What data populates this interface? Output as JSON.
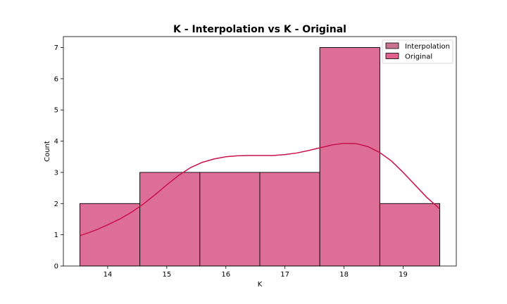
{
  "chart_data": {
    "type": "bar",
    "title": "K - Interpolation vs K - Original",
    "xlabel": "K",
    "ylabel": "Count",
    "xlim": [
      13.25,
      19.9
    ],
    "ylim": [
      0,
      7.35
    ],
    "xticks": [
      14,
      15,
      16,
      17,
      18,
      19
    ],
    "yticks": [
      0,
      1,
      2,
      3,
      4,
      5,
      6,
      7
    ],
    "bin_edges": [
      13.53,
      14.545,
      15.56,
      16.575,
      17.59,
      18.605,
      19.62
    ],
    "series": [
      {
        "name": "Interpolation",
        "counts": [
          2,
          3,
          3,
          3,
          7,
          2
        ],
        "color": "#c9728f"
      },
      {
        "name": "Original",
        "counts": [
          2,
          3,
          3,
          3,
          7,
          2
        ],
        "color": "#e0608e"
      }
    ],
    "kde": {
      "color": "#c8124a",
      "x": [
        13.53,
        13.8,
        14.0,
        14.2,
        14.4,
        14.6,
        14.8,
        15.0,
        15.2,
        15.4,
        15.6,
        15.8,
        16.0,
        16.2,
        16.4,
        16.6,
        16.8,
        17.0,
        17.2,
        17.4,
        17.6,
        17.8,
        18.0,
        18.2,
        18.4,
        18.6,
        18.8,
        19.0,
        19.2,
        19.4,
        19.62
      ],
      "y": [
        0.97,
        1.15,
        1.32,
        1.5,
        1.72,
        1.98,
        2.28,
        2.6,
        2.9,
        3.15,
        3.32,
        3.43,
        3.5,
        3.53,
        3.54,
        3.54,
        3.54,
        3.57,
        3.62,
        3.7,
        3.79,
        3.88,
        3.93,
        3.92,
        3.83,
        3.64,
        3.37,
        3.0,
        2.6,
        2.2,
        1.83
      ]
    },
    "legend": {
      "position": "top-right",
      "entries": [
        "Interpolation",
        "Original"
      ]
    },
    "grid": false
  }
}
